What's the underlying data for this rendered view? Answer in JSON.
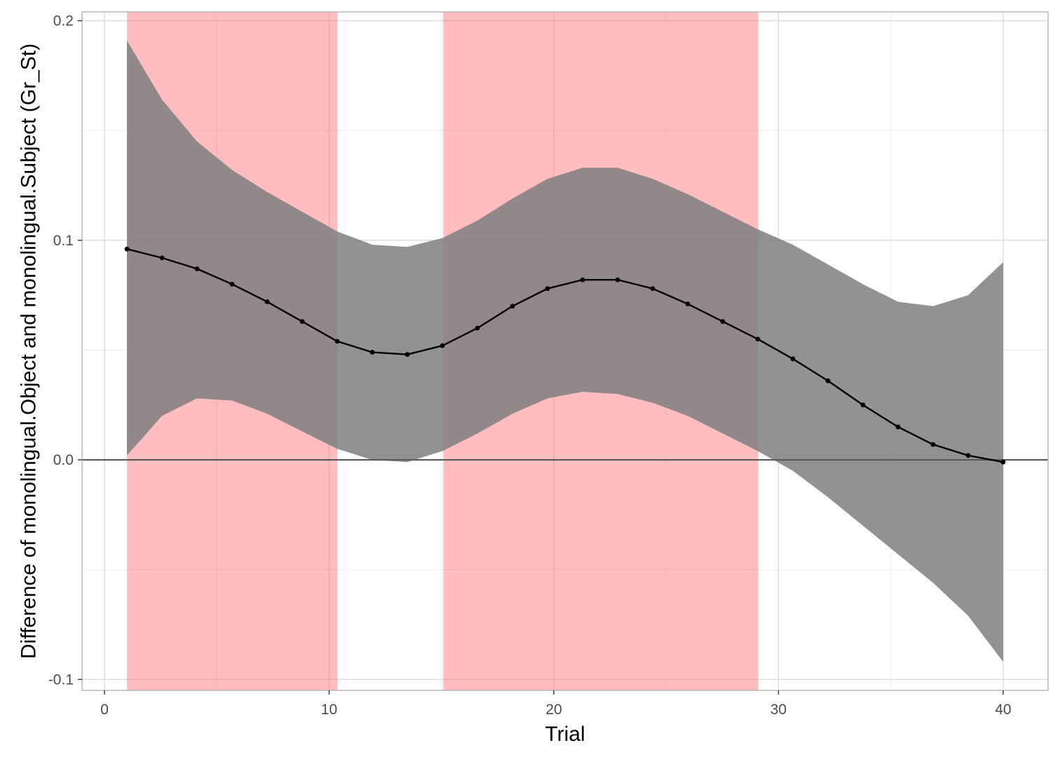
{
  "chart_data": {
    "type": "line",
    "xlabel": "Trial",
    "ylabel": "Difference of monolingual.Object and monolingual.Subject (Gr_St)",
    "xlim": [
      -1,
      42
    ],
    "ylim": [
      -0.105,
      0.204
    ],
    "x_ticks": [
      0,
      10,
      20,
      30,
      40
    ],
    "x_tick_labels": [
      "0",
      "10",
      "20",
      "30",
      "40"
    ],
    "y_ticks": [
      -0.1,
      0.0,
      0.1,
      0.2
    ],
    "y_tick_labels": [
      "-0.1",
      "0.0",
      "0.1",
      "0.2"
    ],
    "grid": true,
    "reference_line": 0,
    "highlight_regions": [
      [
        1,
        10.36
      ],
      [
        15.08,
        29.1
      ]
    ],
    "series": [
      {
        "x": [
          1,
          2.56,
          4.12,
          5.68,
          7.24,
          8.8,
          10.36,
          11.92,
          13.48,
          15.04,
          16.6,
          18.16,
          19.72,
          21.28,
          22.84,
          24.4,
          25.96,
          27.52,
          29.08,
          30.64,
          32.2,
          33.76,
          35.32,
          36.88,
          38.44,
          40
        ],
        "values": [
          0.096,
          0.092,
          0.087,
          0.08,
          0.072,
          0.063,
          0.054,
          0.049,
          0.048,
          0.052,
          0.06,
          0.07,
          0.078,
          0.082,
          0.082,
          0.078,
          0.071,
          0.063,
          0.055,
          0.046,
          0.036,
          0.025,
          0.015,
          0.007,
          0.002,
          -0.001
        ],
        "lower": [
          0.002,
          0.02,
          0.028,
          0.027,
          0.021,
          0.013,
          0.005,
          0.0,
          -0.001,
          0.004,
          0.012,
          0.021,
          0.028,
          0.031,
          0.03,
          0.026,
          0.02,
          0.012,
          0.004,
          -0.005,
          -0.017,
          -0.03,
          -0.043,
          -0.056,
          -0.071,
          -0.092
        ],
        "upper": [
          0.191,
          0.164,
          0.145,
          0.132,
          0.122,
          0.113,
          0.104,
          0.098,
          0.097,
          0.101,
          0.109,
          0.119,
          0.128,
          0.133,
          0.133,
          0.128,
          0.121,
          0.113,
          0.105,
          0.098,
          0.089,
          0.08,
          0.072,
          0.07,
          0.075,
          0.09
        ]
      }
    ],
    "colors": {
      "band": "#7f7f7f",
      "highlight": "#ff5a5f",
      "line": "#000000",
      "zero_line": "#595959",
      "grid_major": "#dcdcdc",
      "grid_minor": "#ededed",
      "panel_border": "#b3b3b3"
    }
  }
}
